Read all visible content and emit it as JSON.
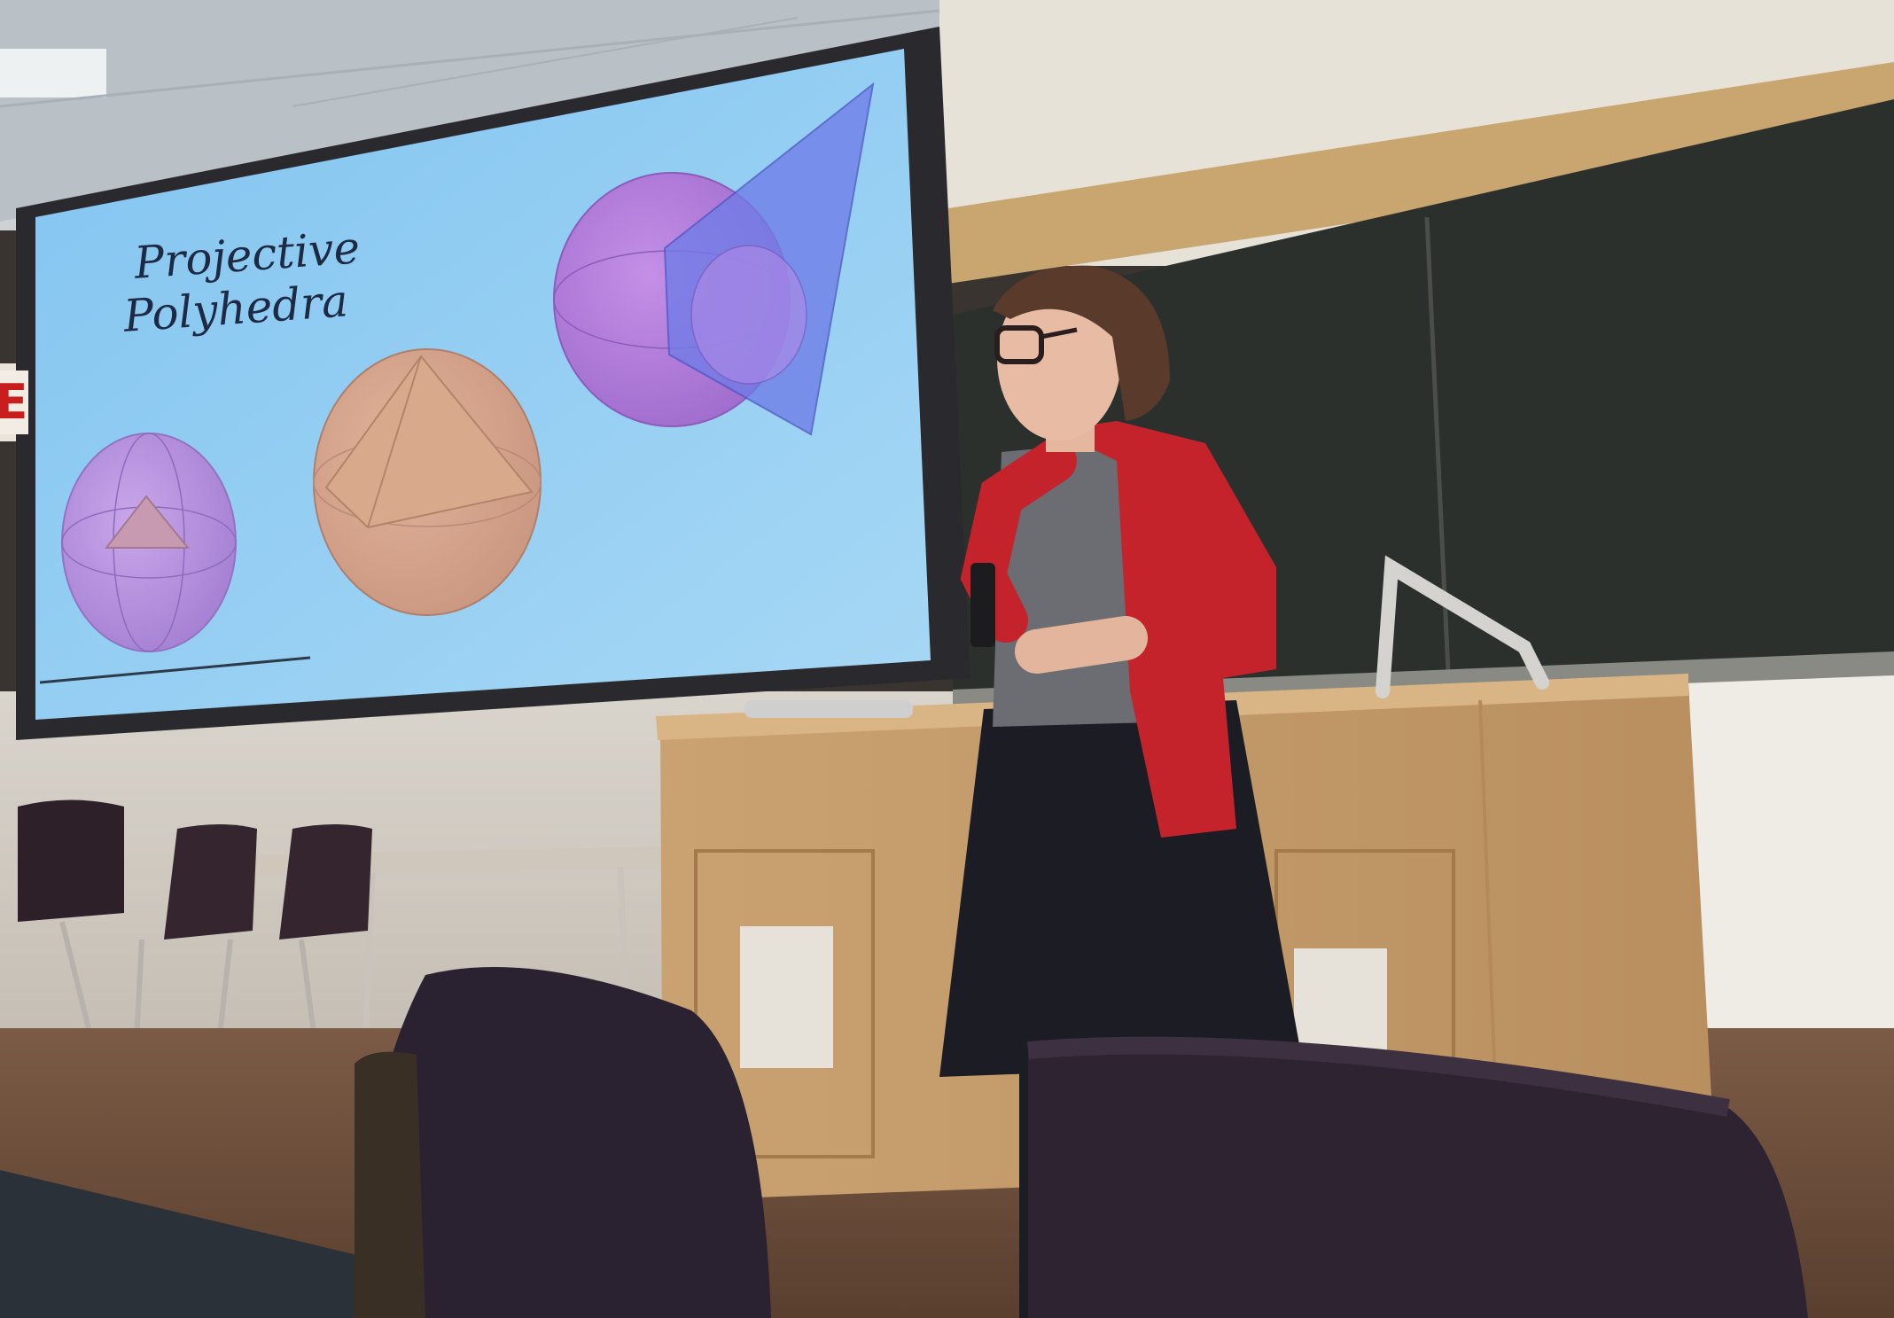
{
  "slide": {
    "title_line_1": "Projective",
    "title_line_2": "Polyhedra"
  },
  "exit_sign_text": "E",
  "colors": {
    "screen_blue": "#8ec9f2",
    "cardigan_red": "#c4232b",
    "chalkboard": "#2b2f2b",
    "podium_wood": "#c99f6c",
    "sphere_purple": "#b48ee0",
    "cone_blue": "#6f7de8"
  }
}
